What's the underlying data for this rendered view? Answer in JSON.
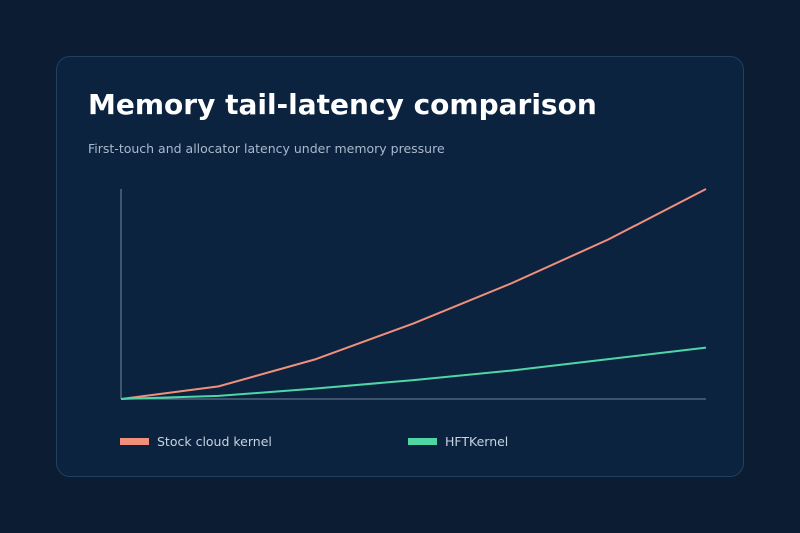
{
  "title": "Memory tail-latency comparison",
  "subtitle": "First-touch and allocator latency under memory pressure",
  "colors": {
    "background": "#0b1c33",
    "card": "#0c2340",
    "axis": "#8fa4ba",
    "stock": "#f0907c",
    "hft": "#4fd6a5"
  },
  "chart_data": {
    "type": "line",
    "title": "Memory tail-latency comparison",
    "subtitle": "First-touch and allocator latency under memory pressure",
    "xlabel": "",
    "ylabel": "",
    "x": [
      0,
      1,
      2,
      3,
      4,
      5,
      6
    ],
    "xlim": [
      0,
      6
    ],
    "ylim": [
      0,
      100
    ],
    "grid": false,
    "legend_position": "bottom",
    "series": [
      {
        "name": "Stock cloud kernel",
        "color": "#f0907c",
        "values": [
          0,
          6,
          19,
          36,
          55,
          76,
          100
        ]
      },
      {
        "name": "HFTKernel",
        "color": "#4fd6a5",
        "values": [
          0,
          1.5,
          5,
          9,
          13.5,
          19,
          24.5
        ]
      }
    ]
  }
}
